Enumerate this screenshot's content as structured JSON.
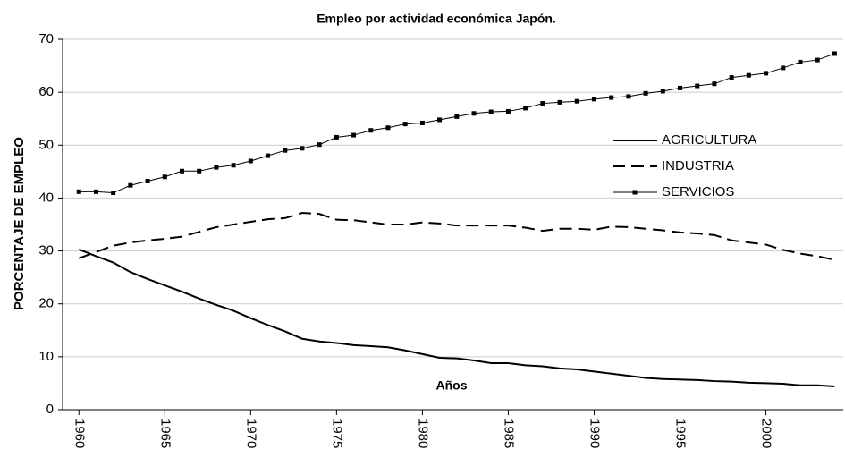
{
  "chart_data": {
    "type": "line",
    "title": "Empleo por actividad económica Japón.",
    "y_label": "PORCENTAJE DE EMPLEO",
    "annotation": "Años",
    "x": [
      1960,
      1961,
      1962,
      1963,
      1964,
      1965,
      1966,
      1967,
      1968,
      1969,
      1970,
      1971,
      1972,
      1973,
      1974,
      1975,
      1976,
      1977,
      1978,
      1979,
      1980,
      1981,
      1982,
      1983,
      1984,
      1985,
      1986,
      1987,
      1988,
      1989,
      1990,
      1991,
      1992,
      1993,
      1994,
      1995,
      1996,
      1997,
      1998,
      1999,
      2000,
      2001,
      2002,
      2003,
      2004
    ],
    "series": [
      {
        "name": "AGRICULTURA",
        "color": "#000000",
        "style": "solid",
        "values": [
          30.3,
          29.0,
          27.8,
          26.0,
          24.7,
          23.5,
          22.3,
          21.0,
          19.8,
          18.7,
          17.3,
          16.0,
          14.8,
          13.4,
          12.9,
          12.6,
          12.2,
          12.0,
          11.8,
          11.2,
          10.5,
          9.8,
          9.7,
          9.3,
          8.8,
          8.8,
          8.4,
          8.2,
          7.8,
          7.6,
          7.2,
          6.8,
          6.4,
          6.0,
          5.8,
          5.7,
          5.6,
          5.4,
          5.3,
          5.1,
          5.0,
          4.9,
          4.6,
          4.6,
          4.4
        ]
      },
      {
        "name": "INDUSTRIA",
        "color": "#000000",
        "style": "dashed",
        "values": [
          28.6,
          29.8,
          31.0,
          31.6,
          32.0,
          32.3,
          32.7,
          33.6,
          34.5,
          35.0,
          35.5,
          36.0,
          36.2,
          37.2,
          37.0,
          35.9,
          35.8,
          35.4,
          35.0,
          35.0,
          35.4,
          35.2,
          34.8,
          34.8,
          34.8,
          34.8,
          34.4,
          33.8,
          34.2,
          34.2,
          34.0,
          34.6,
          34.5,
          34.2,
          33.9,
          33.5,
          33.3,
          33.0,
          32.0,
          31.6,
          31.2,
          30.2,
          29.5,
          29.0,
          28.3
        ]
      },
      {
        "name": "SERVICIOS",
        "color": "#000000",
        "style": "marker",
        "values": [
          41.2,
          41.2,
          41.0,
          42.4,
          43.2,
          44.0,
          45.1,
          45.1,
          45.8,
          46.2,
          47.0,
          48.0,
          49.0,
          49.4,
          50.1,
          51.5,
          51.9,
          52.8,
          53.3,
          54.0,
          54.2,
          54.8,
          55.4,
          56.0,
          56.3,
          56.4,
          57.0,
          57.9,
          58.1,
          58.3,
          58.7,
          59.0,
          59.2,
          59.8,
          60.2,
          60.8,
          61.2,
          61.6,
          62.8,
          63.2,
          63.6,
          64.6,
          65.7,
          66.1,
          67.3
        ]
      }
    ],
    "xlim": [
      1959.05,
      2004.5
    ],
    "xticks": [
      1960,
      1965,
      1970,
      1975,
      1980,
      1985,
      1990,
      1995,
      2000
    ],
    "ylim": [
      0,
      70
    ],
    "yticks": [
      0,
      10,
      20,
      30,
      40,
      50,
      60,
      70
    ],
    "grid": true
  }
}
